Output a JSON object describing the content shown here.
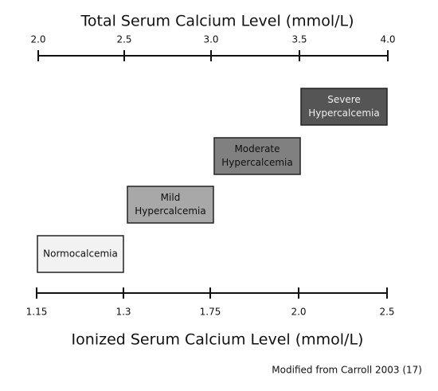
{
  "top_axis": {
    "title": "Total Serum Calcium Level (mmol/L)",
    "ticks": [
      "2.0",
      "2.5",
      "3.0",
      "3.5",
      "4.0"
    ]
  },
  "bottom_axis": {
    "title": "Ionized Serum Calcium Level (mmol/L)",
    "ticks": [
      "1.15",
      "1.3",
      "1.75",
      "2.0",
      "2.5"
    ]
  },
  "boxes": [
    {
      "lines": [
        "Normocalcemia"
      ]
    },
    {
      "lines": [
        "Mild",
        "Hypercalcemia"
      ]
    },
    {
      "lines": [
        "Moderate",
        "Hypercalcemia"
      ]
    },
    {
      "lines": [
        "Severe",
        "Hypercalcemia"
      ]
    }
  ],
  "caption": "Modified from Carroll 2003 (17)"
}
